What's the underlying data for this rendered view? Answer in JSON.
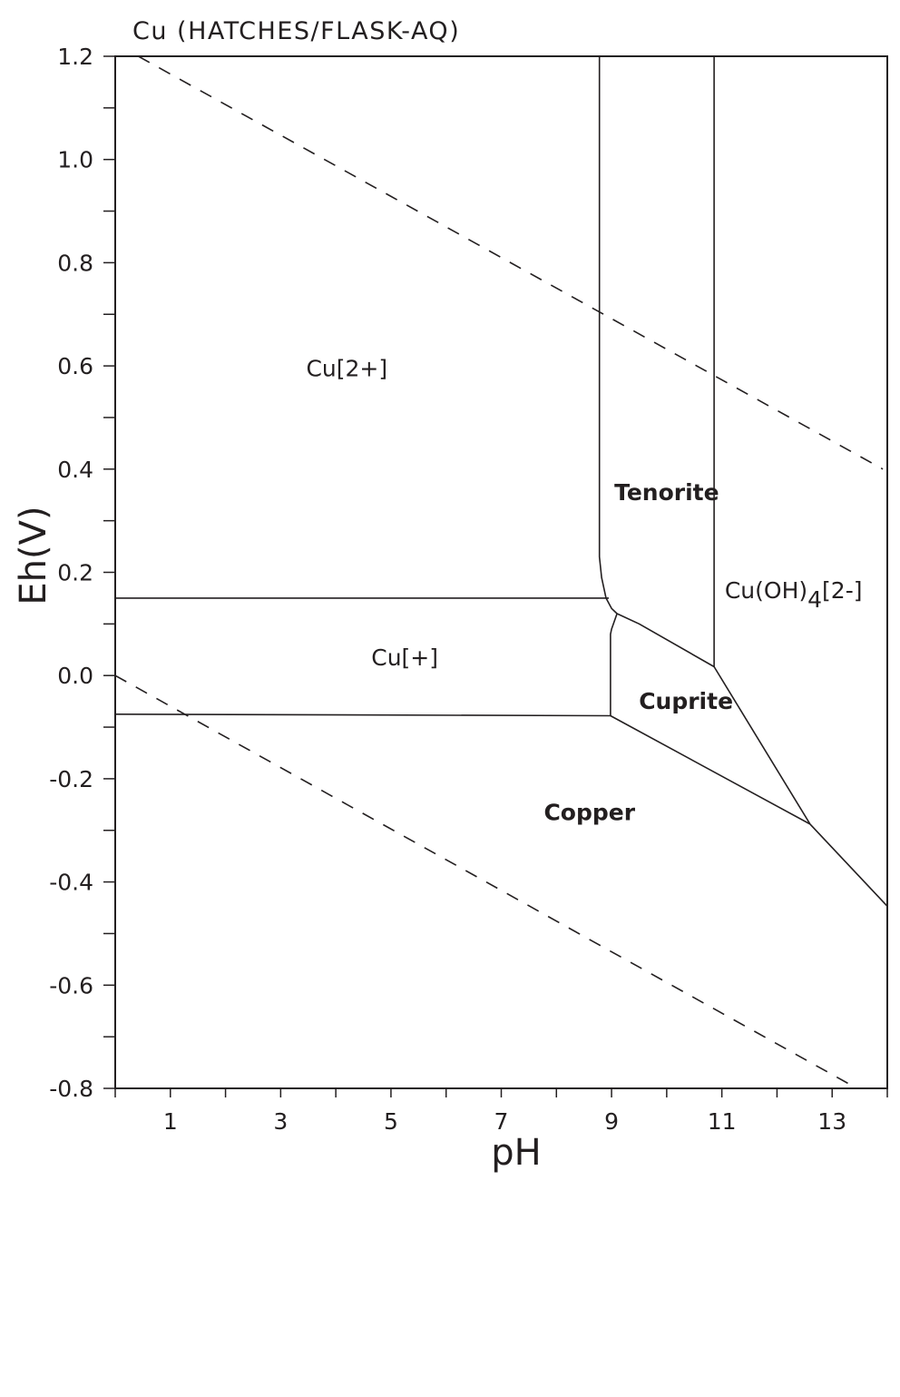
{
  "chart_data": {
    "type": "line",
    "subtype": "pourbaix-diagram",
    "title": "Cu (HATCHES/FLASK-AQ)",
    "xlabel": "pH",
    "ylabel": "Eh(V)",
    "xlim": [
      0,
      14
    ],
    "ylim": [
      -0.8,
      1.2
    ],
    "grid": false,
    "legend": null,
    "x_ticks_major": [
      0,
      1,
      2,
      3,
      4,
      5,
      6,
      7,
      8,
      9,
      10,
      11,
      12,
      13,
      14
    ],
    "x_tick_labels": [
      {
        "value": 1,
        "label": "1"
      },
      {
        "value": 3,
        "label": "3"
      },
      {
        "value": 5,
        "label": "5"
      },
      {
        "value": 7,
        "label": "7"
      },
      {
        "value": 9,
        "label": "9"
      },
      {
        "value": 11,
        "label": "11"
      },
      {
        "value": 13,
        "label": "13"
      }
    ],
    "y_ticks_minor_step": 0.1,
    "y_tick_labels": [
      {
        "value": 1.2,
        "label": "1.2"
      },
      {
        "value": 1.0,
        "label": "1.0"
      },
      {
        "value": 0.8,
        "label": "0.8"
      },
      {
        "value": 0.6,
        "label": "0.6"
      },
      {
        "value": 0.4,
        "label": "0.4"
      },
      {
        "value": 0.2,
        "label": "0.2"
      },
      {
        "value": 0.0,
        "label": "0.0"
      },
      {
        "value": -0.2,
        "label": "-0.2"
      },
      {
        "value": -0.4,
        "label": "-0.4"
      },
      {
        "value": -0.6,
        "label": "-0.6"
      },
      {
        "value": -0.8,
        "label": "-0.8"
      }
    ],
    "series": [
      {
        "name": "water-oxidation-limit",
        "style": "dashed",
        "x": [
          0.42,
          13.92
        ],
        "y": [
          1.2,
          0.4
        ]
      },
      {
        "name": "water-reduction-limit",
        "style": "dashed",
        "x": [
          0.0,
          13.45
        ],
        "y": [
          0.0,
          -0.8
        ]
      },
      {
        "name": "Cu2+/Tenorite",
        "style": "solid",
        "x": [
          8.78,
          8.78,
          8.82,
          8.9,
          9.0,
          9.1
        ],
        "y": [
          1.2,
          0.23,
          0.19,
          0.15,
          0.13,
          0.12
        ]
      },
      {
        "name": "Cu2+/Cu+",
        "style": "solid",
        "x": [
          0.0,
          8.95
        ],
        "y": [
          0.15,
          0.15
        ]
      },
      {
        "name": "Cu+/Cuprite",
        "style": "solid",
        "x": [
          9.1,
          9.0,
          8.98,
          8.98
        ],
        "y": [
          0.12,
          0.09,
          0.08,
          -0.078
        ]
      },
      {
        "name": "Cu+/Copper",
        "style": "solid",
        "x": [
          0.0,
          8.98
        ],
        "y": [
          -0.075,
          -0.078
        ]
      },
      {
        "name": "Tenorite/Cuprite",
        "style": "solid",
        "x": [
          9.1,
          9.5,
          10.86
        ],
        "y": [
          0.12,
          0.1,
          0.017
        ]
      },
      {
        "name": "Tenorite/Cu(OH)4[2-]",
        "style": "solid",
        "x": [
          10.86,
          10.86
        ],
        "y": [
          1.2,
          0.017
        ]
      },
      {
        "name": "Cuprite/Cu(OH)4[2-]",
        "style": "solid",
        "x": [
          10.86,
          12.6
        ],
        "y": [
          0.017,
          -0.288
        ]
      },
      {
        "name": "Cuprite/Copper",
        "style": "solid",
        "x": [
          8.98,
          12.6
        ],
        "y": [
          -0.078,
          -0.288
        ]
      },
      {
        "name": "Copper/Cu(OH)4[2-]",
        "style": "solid",
        "x": [
          12.6,
          14.0
        ],
        "y": [
          -0.288,
          -0.447
        ]
      }
    ],
    "annotations": [
      {
        "text": "Cu[2+]",
        "x": 4.2,
        "y": 0.58,
        "bold": false
      },
      {
        "text": "Tenorite",
        "x": 10.0,
        "y": 0.34,
        "bold": true
      },
      {
        "text": "Cu(OH)",
        "sub": "4",
        "suffix": "[2-]",
        "x": 12.3,
        "y": 0.15,
        "bold": false
      },
      {
        "text": "Cu[+]",
        "x": 5.25,
        "y": 0.02,
        "bold": false
      },
      {
        "text": "Cuprite",
        "x": 10.35,
        "y": -0.065,
        "bold": true
      },
      {
        "text": "Copper",
        "x": 8.6,
        "y": -0.28,
        "bold": true
      }
    ]
  },
  "labels": {
    "title": "Cu (HATCHES/FLASK-AQ)",
    "xlabel": "pH",
    "ylabel": "Eh(V)"
  }
}
